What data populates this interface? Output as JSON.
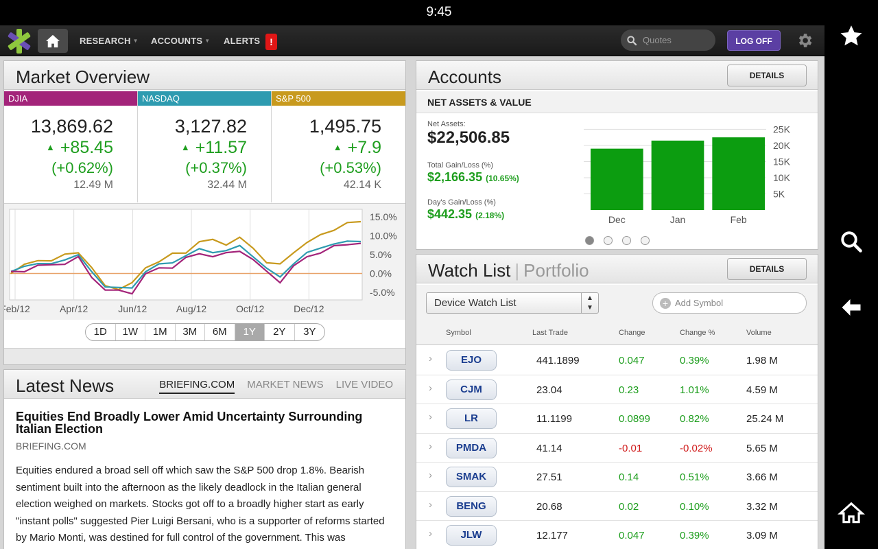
{
  "status_bar": {
    "time": "9:45"
  },
  "nav": {
    "research": "RESEARCH",
    "accounts": "ACCOUNTS",
    "alerts": "ALERTS",
    "alert_badge": "!",
    "quotes_placeholder": "Quotes",
    "logoff": "LOG OFF"
  },
  "market_overview": {
    "title": "Market Overview",
    "indices": [
      {
        "name": "DJIA",
        "value": "13,869.62",
        "change": "+85.45",
        "pct": "(+0.62%)",
        "volume": "12.49 M",
        "color": "#a3247a"
      },
      {
        "name": "NASDAQ",
        "value": "3,127.82",
        "change": "+11.57",
        "pct": "(+0.37%)",
        "volume": "32.44 M",
        "color": "#2e9bb0"
      },
      {
        "name": "S&P 500",
        "value": "1,495.75",
        "change": "+7.9",
        "pct": "(+0.53%)",
        "volume": "42.14 K",
        "color": "#c89a1e"
      }
    ],
    "chart_data": {
      "type": "line",
      "x_ticks": [
        "Feb/12",
        "Apr/12",
        "Jun/12",
        "Aug/12",
        "Oct/12",
        "Dec/12"
      ],
      "y_ticks": [
        "15.0%",
        "10.0%",
        "5.0%",
        "0.0%",
        "-5.0%"
      ],
      "ylim": [
        -7,
        17
      ],
      "series": [
        {
          "color": "#c89a1e",
          "values": [
            0,
            2,
            4,
            3,
            5,
            6,
            1,
            -3,
            -4,
            -3,
            2,
            3,
            5,
            6,
            8,
            9,
            8,
            9,
            7,
            3,
            2,
            6,
            8,
            10,
            12,
            13,
            13.8
          ]
        },
        {
          "color": "#2e9bb0",
          "values": [
            0,
            2,
            3,
            2,
            4,
            5,
            0,
            -3,
            -4,
            -4,
            1,
            2,
            3,
            5,
            6,
            6,
            6,
            7,
            5,
            1,
            -1,
            3,
            5,
            7,
            8,
            8,
            9
          ]
        },
        {
          "color": "#a3247a",
          "values": [
            0,
            1,
            2,
            2,
            3,
            4,
            -1,
            -4,
            -5,
            -5,
            0,
            1,
            2,
            4,
            5,
            5,
            5,
            6,
            4,
            0,
            -2,
            2,
            4,
            6,
            7,
            7.5,
            8.5
          ]
        }
      ]
    },
    "ranges": [
      {
        "label": "1D",
        "selected": false
      },
      {
        "label": "1W",
        "selected": false
      },
      {
        "label": "1M",
        "selected": false
      },
      {
        "label": "3M",
        "selected": false
      },
      {
        "label": "6M",
        "selected": false
      },
      {
        "label": "1Y",
        "selected": true
      },
      {
        "label": "2Y",
        "selected": false
      },
      {
        "label": "3Y",
        "selected": false
      }
    ]
  },
  "news": {
    "title": "Latest News",
    "tabs": [
      "BRIEFING.COM",
      "MARKET NEWS",
      "LIVE VIDEO"
    ],
    "headline": "Equities End Broadly Lower Amid Uncertainty Surrounding Italian Election",
    "source": "BRIEFING.COM",
    "body": "Equities endured a broad sell off which saw the S&P 500 drop 1.8%. Bearish sentiment built into the afternoon as the likely deadlock in the Italian general election weighed on markets. Stocks got off to a broadly higher start as early \"instant polls\" suggested Pier Luigi Bersani, who is a supporter of reforms started by Mario Monti, was destined for full control of the government. This was"
  },
  "accounts": {
    "title": "Accounts",
    "details": "DETAILS",
    "subtitle": "NET ASSETS & VALUE",
    "net_assets_label": "Net Assets:",
    "net_assets": "$22,506.85",
    "total_gain_label": "Total Gain/Loss (%)",
    "total_gain": "$2,166.35",
    "total_gain_pct": "(10.65%)",
    "day_gain_label": "Day's Gain/Loss (%)",
    "day_gain": "$442.35",
    "day_gain_pct": "(2.18%)",
    "chart_data": {
      "type": "bar",
      "categories": [
        "Dec",
        "Jan",
        "Feb"
      ],
      "values": [
        19000,
        21500,
        22506.85
      ],
      "y_ticks": [
        "25K",
        "20K",
        "15K",
        "10K",
        "5K"
      ],
      "ylim": [
        0,
        27000
      ],
      "color": "#0c9d10"
    },
    "page_dots": 4,
    "active_dot": 0
  },
  "watchlist": {
    "title": "Watch List",
    "alt_title": "Portfolio",
    "details": "DETAILS",
    "list_name": "Device Watch List",
    "add_placeholder": "Add Symbol",
    "columns": [
      "Symbol",
      "Last Trade",
      "Change",
      "Change %",
      "Volume"
    ],
    "rows": [
      {
        "symbol": "EJO",
        "last": "441.1899",
        "change": "0.047",
        "pct": "0.39%",
        "volume": "1.98 M",
        "dir": "pos"
      },
      {
        "symbol": "CJM",
        "last": "23.04",
        "change": "0.23",
        "pct": "1.01%",
        "volume": "4.59 M",
        "dir": "pos"
      },
      {
        "symbol": "LR",
        "last": "11.1199",
        "change": "0.0899",
        "pct": "0.82%",
        "volume": "25.24 M",
        "dir": "pos"
      },
      {
        "symbol": "PMDA",
        "last": "41.14",
        "change": "-0.01",
        "pct": "-0.02%",
        "volume": "5.65 M",
        "dir": "neg"
      },
      {
        "symbol": "SMAK",
        "last": "27.51",
        "change": "0.14",
        "pct": "0.51%",
        "volume": "3.66 M",
        "dir": "pos"
      },
      {
        "symbol": "BENG",
        "last": "20.68",
        "change": "0.02",
        "pct": "0.10%",
        "volume": "3.32 M",
        "dir": "pos"
      },
      {
        "symbol": "JLW",
        "last": "12.177",
        "change": "0.047",
        "pct": "0.39%",
        "volume": "3.09 M",
        "dir": "pos"
      }
    ]
  }
}
